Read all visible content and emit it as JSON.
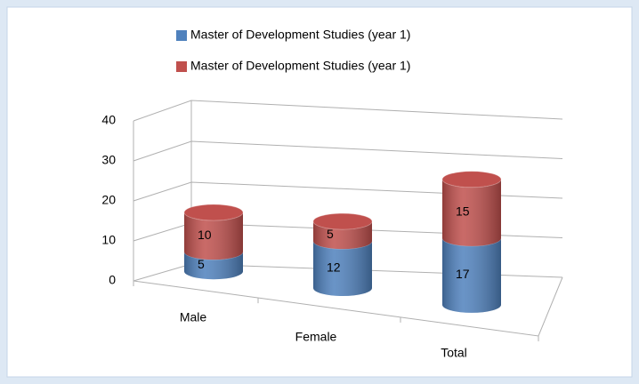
{
  "chart_data": {
    "type": "bar",
    "stacked": true,
    "three_d": true,
    "categories": [
      "Male",
      "Female",
      "Total"
    ],
    "series": [
      {
        "name": "Master of Development Studies (year 1)",
        "color": "#4f81bd",
        "values": [
          5,
          12,
          17
        ]
      },
      {
        "name": "Master of Development Studies (year 1)",
        "color": "#c0504d",
        "values": [
          10,
          5,
          15
        ]
      }
    ],
    "ylim": [
      0,
      40
    ],
    "yticks": [
      0,
      10,
      20,
      30,
      40
    ],
    "grid": true,
    "data_labels": true,
    "legend": "top"
  }
}
